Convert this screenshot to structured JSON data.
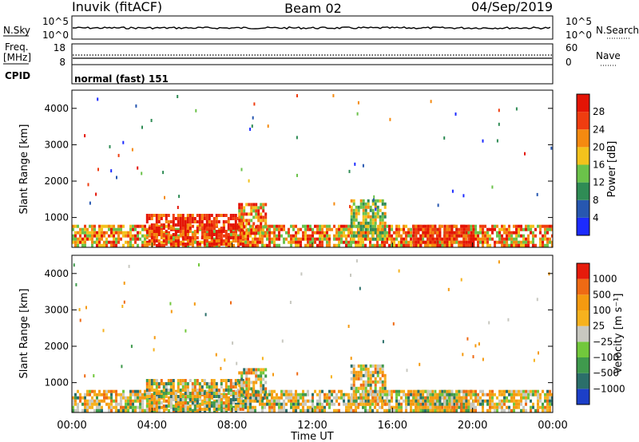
{
  "header": {
    "station": "Inuvik (fitACF)",
    "beam": "Beam 02",
    "date": "04/Sep/2019"
  },
  "panels": {
    "noise": {
      "left_label": "N.Sky",
      "right_label": "N.Search",
      "left_ticks": [
        "10^5",
        "10^0"
      ],
      "right_ticks": [
        "10^5",
        "10^0"
      ]
    },
    "freq": {
      "left_label_1": "Freq.",
      "left_label_2": "[MHz]",
      "right_label": "Nave",
      "left_ticks": [
        "18",
        "8"
      ],
      "right_ticks": [
        "60",
        "0"
      ]
    },
    "cpid": {
      "label": "CPID",
      "text": "normal (fast) 151"
    }
  },
  "chart_data": [
    {
      "type": "heatmap",
      "name": "power",
      "ylabel": "Slant Range [km]",
      "ylim": [
        180,
        4500
      ],
      "y_ticks": [
        "1000",
        "2000",
        "3000",
        "4000"
      ],
      "colorbar_label": "Power [dB]",
      "colorbar_ticks": [
        "4",
        "8",
        "12",
        "16",
        "20",
        "24",
        "28"
      ],
      "colors": [
        "#1c2bff",
        "#2757b0",
        "#2f8c55",
        "#6bc24a",
        "#f3c21c",
        "#f58a10",
        "#ef3d10",
        "#e41405"
      ],
      "echo_regions": [
        {
          "t0": 0.0,
          "t1": 24.0,
          "r0": 180,
          "r1": 800,
          "level": "high"
        },
        {
          "t0": 3.7,
          "t1": 8.5,
          "r0": 300,
          "r1": 1100,
          "level": "very high"
        },
        {
          "t0": 8.3,
          "t1": 9.7,
          "r0": 600,
          "r1": 1400,
          "level": "high"
        },
        {
          "t0": 13.9,
          "t1": 15.6,
          "r0": 400,
          "r1": 1500,
          "level": "medium"
        },
        {
          "t0": 17.0,
          "t1": 20.0,
          "r0": 180,
          "r1": 800,
          "level": "very high"
        }
      ]
    },
    {
      "type": "heatmap",
      "name": "velocity",
      "ylabel": "Slant Range [km]",
      "ylim": [
        180,
        4500
      ],
      "y_ticks": [
        "1000",
        "2000",
        "3000",
        "4000"
      ],
      "colorbar_label": "Velocity [m s⁻¹]",
      "colorbar_ticks": [
        "1000",
        "500",
        "100",
        "25",
        "−25",
        "−100",
        "−500",
        "−1000"
      ],
      "colors": [
        "#1c3fc8",
        "#2b6f6a",
        "#3f9a4d",
        "#72c83c",
        "#c8c8c0",
        "#f6b21e",
        "#f59a10",
        "#ef6a14",
        "#e61b0b"
      ],
      "x_ticks": [
        "00:00",
        "04:00",
        "08:00",
        "12:00",
        "16:00",
        "20:00",
        "00:00"
      ],
      "xlabel": "Time UT"
    }
  ]
}
